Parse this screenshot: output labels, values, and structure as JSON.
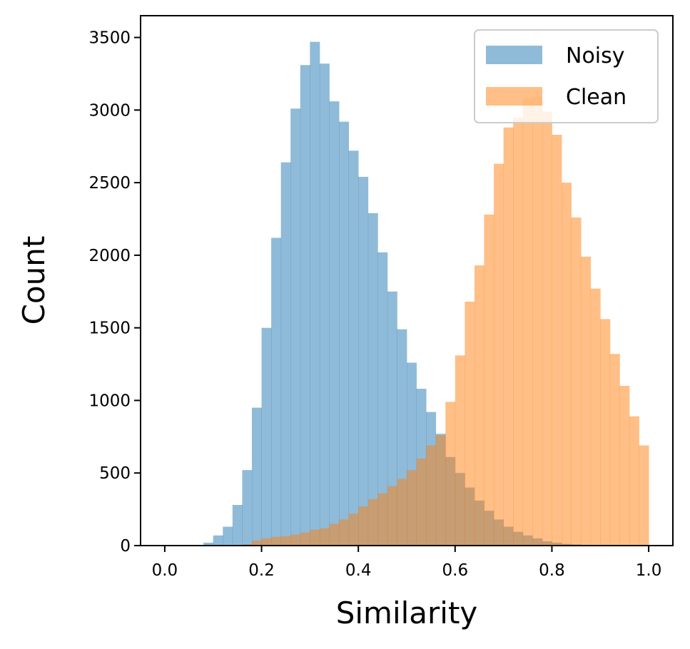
{
  "chart_data": {
    "type": "histogram",
    "xlabel": "Similarity",
    "ylabel": "Count",
    "xlim": [
      -0.05,
      1.05
    ],
    "ylim": [
      0,
      3650
    ],
    "x_ticks": [
      0.0,
      0.2,
      0.4,
      0.6,
      0.8,
      1.0
    ],
    "x_tick_labels": [
      "0.0",
      "0.2",
      "0.4",
      "0.6",
      "0.8",
      "1.0"
    ],
    "y_ticks": [
      0,
      500,
      1000,
      1500,
      2000,
      2500,
      3000,
      3500
    ],
    "y_tick_labels": [
      "0",
      "500",
      "1000",
      "1500",
      "2000",
      "2500",
      "3000",
      "3500"
    ],
    "bin_width": 0.02,
    "bin_start": 0.0,
    "grid": false,
    "legend_position": "top-right",
    "series": [
      {
        "name": "Noisy",
        "color": "#1f77b4",
        "alpha": 0.5,
        "values": [
          0,
          0,
          0,
          0,
          20,
          70,
          130,
          280,
          520,
          950,
          1500,
          2120,
          2640,
          3010,
          3310,
          3470,
          3320,
          3060,
          2920,
          2720,
          2540,
          2290,
          2020,
          1750,
          1490,
          1260,
          1080,
          920,
          770,
          610,
          500,
          400,
          310,
          240,
          180,
          130,
          95,
          70,
          50,
          30,
          20,
          12,
          8,
          5,
          3,
          2,
          1,
          1,
          0,
          0
        ]
      },
      {
        "name": "Clean",
        "color": "#ff7f0e",
        "alpha": 0.5,
        "values": [
          0,
          0,
          0,
          0,
          0,
          0,
          0,
          0,
          10,
          35,
          50,
          60,
          65,
          75,
          90,
          110,
          120,
          150,
          180,
          220,
          270,
          320,
          360,
          410,
          460,
          520,
          600,
          690,
          760,
          990,
          1310,
          1680,
          1930,
          2280,
          2630,
          2880,
          2950,
          3080,
          3090,
          2990,
          2830,
          2500,
          2260,
          1990,
          1770,
          1560,
          1320,
          1100,
          890,
          690
        ]
      }
    ]
  }
}
